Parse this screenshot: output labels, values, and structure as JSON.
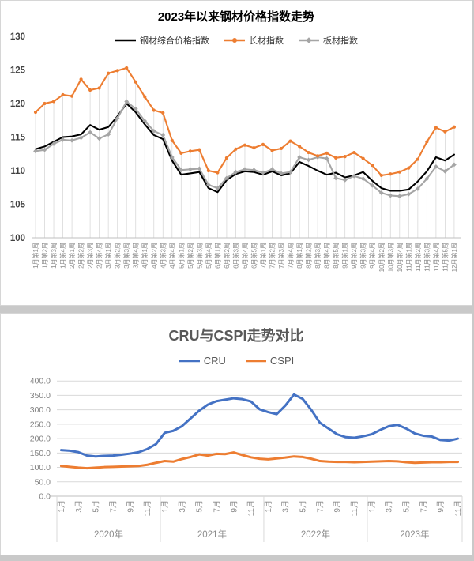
{
  "chart_data": [
    {
      "type": "line",
      "title": "2023年以来钢材价格指数走势",
      "ylim": [
        100,
        130
      ],
      "y_ticks": [
        100,
        105,
        110,
        115,
        120,
        125,
        130
      ],
      "grid": "vertical-drop-lines",
      "legend_position": "top",
      "categories": [
        "1月第1周",
        "1月第2周",
        "1月第3周",
        "1月第4周",
        "2月第1周",
        "2月第2周",
        "2月第3周",
        "2月第4周",
        "3月第1周",
        "3月第2周",
        "3月第3周",
        "3月第4周",
        "4月第1周",
        "4月第2周",
        "4月第3周",
        "4月第4周",
        "5月第1周",
        "5月第2周",
        "5月第3周",
        "5月第4周",
        "6月第1周",
        "6月第2周",
        "6月第3周",
        "6月第4周",
        "6月第5周",
        "7月第1周",
        "7月第2周",
        "7月第3周",
        "7月第4周",
        "8月第1周",
        "8月第2周",
        "8月第3周",
        "8月第4周",
        "8月第5周",
        "9月第1周",
        "9月第2周",
        "9月第3周",
        "9月第4周",
        "10月第2周",
        "10月第3周",
        "10月第4周",
        "11月第1周",
        "11月第2周",
        "11月第3周",
        "11月第4周",
        "11月第5周",
        "12月第1周"
      ],
      "series": [
        {
          "name": "钢材综合价格指数",
          "color": "#000000",
          "marker": "none",
          "values": [
            113.2,
            113.6,
            114.3,
            115.0,
            115.1,
            115.4,
            116.8,
            116.1,
            116.5,
            118.1,
            120.0,
            118.7,
            116.9,
            115.3,
            114.7,
            111.5,
            109.4,
            109.6,
            109.8,
            107.4,
            106.8,
            108.6,
            109.5,
            109.9,
            109.8,
            109.4,
            109.9,
            109.3,
            109.6,
            111.3,
            110.7,
            110.0,
            109.4,
            109.7,
            109.0,
            109.3,
            109.8,
            108.5,
            107.4,
            107.0,
            107.0,
            107.2,
            108.4,
            109.9,
            112.0,
            111.5,
            112.4
          ]
        },
        {
          "name": "长材指数",
          "color": "#ED7D31",
          "marker": "circle",
          "values": [
            118.7,
            120.0,
            120.3,
            121.3,
            121.1,
            123.6,
            122.0,
            122.3,
            124.5,
            124.9,
            125.3,
            123.2,
            121.0,
            119.0,
            118.6,
            114.5,
            112.6,
            112.9,
            113.1,
            110.0,
            109.7,
            111.9,
            113.2,
            113.8,
            113.4,
            113.9,
            113.0,
            113.3,
            114.4,
            113.6,
            112.7,
            112.2,
            112.6,
            111.9,
            112.1,
            112.7,
            111.8,
            110.8,
            109.3,
            109.5,
            109.8,
            110.4,
            111.7,
            114.3,
            116.4,
            115.8,
            116.5
          ]
        },
        {
          "name": "板材指数",
          "color": "#A5A5A5",
          "marker": "diamond",
          "values": [
            112.9,
            113.1,
            114.0,
            114.6,
            114.5,
            114.9,
            115.7,
            114.8,
            115.4,
            117.8,
            120.3,
            119.2,
            117.4,
            115.9,
            115.3,
            112.0,
            110.1,
            110.2,
            110.3,
            107.9,
            107.4,
            108.9,
            109.8,
            110.2,
            110.1,
            109.7,
            110.2,
            109.6,
            109.8,
            112.0,
            111.6,
            112.0,
            111.8,
            108.9,
            108.6,
            109.2,
            108.8,
            107.8,
            106.7,
            106.3,
            106.2,
            106.5,
            107.3,
            108.8,
            110.6,
            109.9,
            110.9
          ]
        }
      ]
    },
    {
      "type": "line",
      "title": "CRU与CSPI走势对比",
      "ylim": [
        0,
        400
      ],
      "y_ticks": [
        "0.0",
        "50.0",
        "100.0",
        "150.0",
        "200.0",
        "250.0",
        "300.0",
        "350.0",
        "400.0"
      ],
      "grid": "horizontal",
      "legend_position": "top",
      "month_tick_labels": [
        "1月",
        "3月",
        "5月",
        "7月",
        "9月",
        "11月"
      ],
      "year_labels": [
        "2020年",
        "2021年",
        "2022年",
        "2023年"
      ],
      "months_per_year": [
        12,
        12,
        12,
        11
      ],
      "series": [
        {
          "name": "CRU",
          "color": "#4472C4",
          "marker": "none",
          "values": [
            160,
            158,
            153,
            141,
            138,
            140,
            141,
            144,
            148,
            153,
            164,
            181,
            220,
            227,
            243,
            270,
            297,
            318,
            330,
            335,
            340,
            337,
            329,
            302,
            292,
            285,
            315,
            353,
            338,
            300,
            255,
            235,
            215,
            205,
            203,
            208,
            215,
            230,
            243,
            248,
            235,
            218,
            210,
            207,
            195,
            193,
            200
          ]
        },
        {
          "name": "CSPI",
          "color": "#ED7D31",
          "marker": "none",
          "values": [
            105,
            102,
            99,
            97,
            99,
            101,
            102,
            103,
            104,
            105,
            109,
            116,
            122,
            120,
            129,
            136,
            145,
            141,
            147,
            146,
            152,
            143,
            135,
            130,
            128,
            131,
            134,
            138,
            136,
            130,
            122,
            120,
            119,
            119,
            118,
            119,
            120,
            121,
            122,
            121,
            118,
            116,
            117,
            118,
            118,
            119,
            119
          ]
        }
      ]
    }
  ]
}
